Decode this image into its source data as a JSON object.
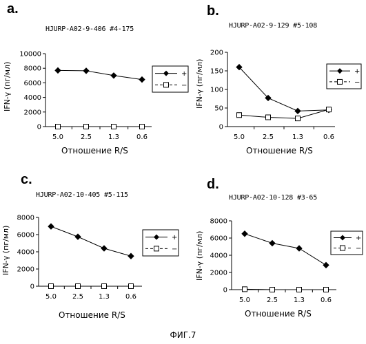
{
  "figure_caption": "ФИГ.7",
  "chart_data": [
    {
      "type": "line",
      "panel_label": "a.",
      "title": "HJURP-A02-9-406 #4-175",
      "xlabel": "Отношение R/S",
      "ylabel": "IFN-γ (пг/мл)",
      "categories": [
        "5.0",
        "2.5",
        "1.3",
        "0.6"
      ],
      "ylim": [
        0,
        10000
      ],
      "yticks": [
        "0",
        "2000",
        "4000",
        "6000",
        "8000",
        "10000"
      ],
      "legend_position": "right",
      "series": [
        {
          "name": "+",
          "marker": "filled-diamond",
          "values": [
            7700,
            7650,
            7000,
            6450
          ]
        },
        {
          "name": "−",
          "marker": "open-square",
          "values": [
            0,
            0,
            0,
            0
          ]
        }
      ]
    },
    {
      "type": "line",
      "panel_label": "b.",
      "title": "HJURP-A02-9-129 #5-108",
      "xlabel": "Отношение R/S",
      "ylabel": "IFN-γ (пг/мл)",
      "categories": [
        "5.0",
        "2.5",
        "1.3",
        "0.6"
      ],
      "ylim": [
        0,
        200
      ],
      "yticks": [
        "0",
        "50",
        "100",
        "150",
        "200"
      ],
      "legend_position": "top-right",
      "series": [
        {
          "name": "+",
          "marker": "filled-diamond",
          "values": [
            160,
            77,
            42,
            45
          ]
        },
        {
          "name": "−",
          "marker": "open-square",
          "values": [
            31,
            25,
            22,
            46
          ]
        }
      ]
    },
    {
      "type": "line",
      "panel_label": "c.",
      "title": "HJURP-A02-10-405 #5-115",
      "xlabel": "Отношение R/S",
      "ylabel": "IFN-γ (пг/мл)",
      "categories": [
        "5.0",
        "2.5",
        "1.3",
        "0.6"
      ],
      "ylim": [
        0,
        8000
      ],
      "yticks": [
        "0",
        "2000",
        "4000",
        "6000",
        "8000"
      ],
      "legend_position": "right",
      "series": [
        {
          "name": "+",
          "marker": "filled-diamond",
          "values": [
            6950,
            5750,
            4400,
            3500
          ]
        },
        {
          "name": "−",
          "marker": "open-square",
          "values": [
            0,
            0,
            0,
            0
          ]
        }
      ]
    },
    {
      "type": "line",
      "panel_label": "d.",
      "title": "HJURP-A02-10-128 #3-65",
      "xlabel": "Отношение R/S",
      "ylabel": "IFN-γ (пг/мл)",
      "categories": [
        "5.0",
        "2.5",
        "1.3",
        "0.6"
      ],
      "ylim": [
        0,
        8000
      ],
      "yticks": [
        "0",
        "2000",
        "4000",
        "6000",
        "8000"
      ],
      "legend_position": "right",
      "series": [
        {
          "name": "+",
          "marker": "filled-diamond",
          "values": [
            6500,
            5400,
            4800,
            2850
          ]
        },
        {
          "name": "−",
          "marker": "open-square",
          "values": [
            50,
            0,
            0,
            0
          ]
        }
      ]
    }
  ]
}
